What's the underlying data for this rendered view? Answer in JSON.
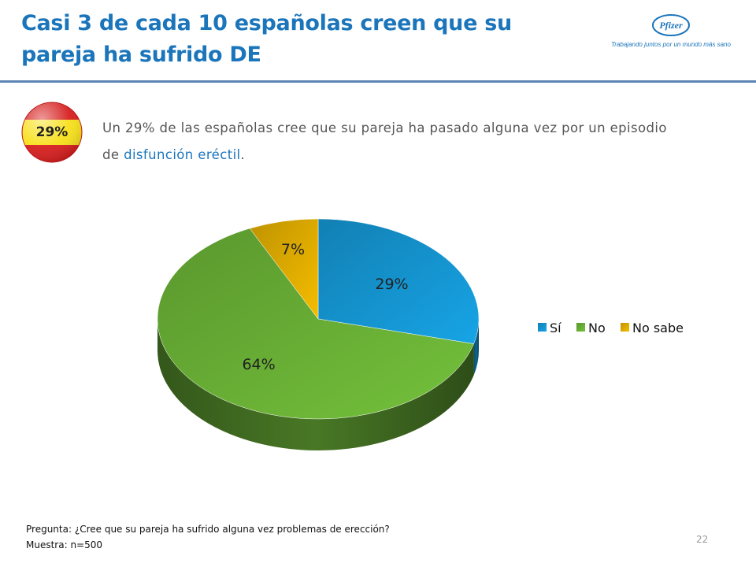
{
  "slide": {
    "title_line1": "Casi 3 de cada 10 españolas creen que su",
    "title_line2": "pareja ha sufrido DE",
    "badge": "29%",
    "description_main": "Un 29% de las españolas cree que su pareja ha pasado alguna vez por un episodio de ",
    "description_highlight": "disfunción eréctil",
    "description_end": ".",
    "footnote_question": "Pregunta: ¿Cree que su pareja ha sufrido alguna vez problemas de erección?",
    "footnote_sample": "Muestra: n=500",
    "page_number": "22"
  },
  "logo": {
    "brand": "Pfizer",
    "tagline": "Trabajando juntos por un mundo más sano"
  },
  "colors": {
    "accent": "#1b75bb",
    "rule": "#5b85b5"
  },
  "chart_data": {
    "type": "pie",
    "categories": [
      "Sí",
      "No",
      "No sabe"
    ],
    "values": [
      29,
      64,
      7
    ],
    "labels": [
      "29%",
      "64%",
      "7%"
    ],
    "colors": [
      "#17a4e6",
      "#74c13b",
      "#f5bd00"
    ],
    "legend_position": "right",
    "three_d": true
  }
}
